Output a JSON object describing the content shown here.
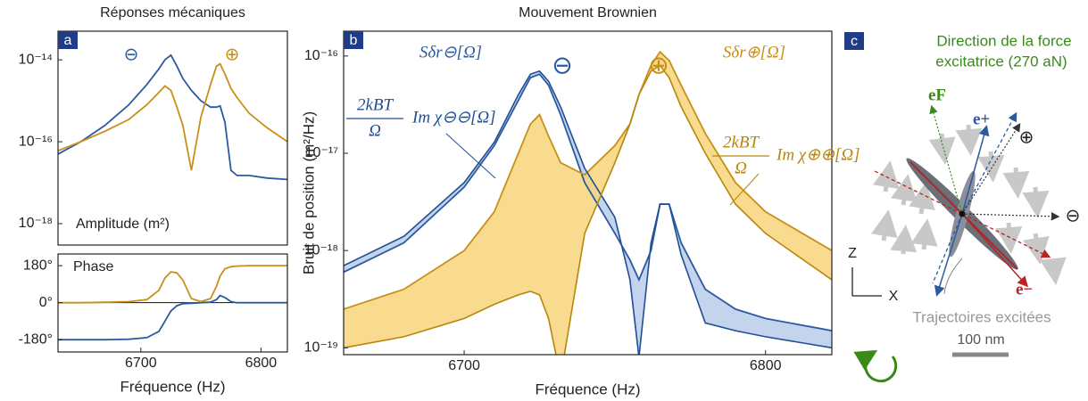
{
  "chart_data": [
    {
      "type": "line",
      "panel": "a",
      "title": "Réponses mécaniques",
      "label": "Amplitude (m²)",
      "log_y": true,
      "x": [
        6631,
        6650,
        6670,
        6690,
        6705,
        6715,
        6720,
        6725,
        6730,
        6735,
        6742,
        6750,
        6758,
        6763,
        6766,
        6770,
        6775,
        6780,
        6790,
        6805,
        6822
      ],
      "xlim": [
        6631,
        6822
      ],
      "ylim": [
        3e-19,
        5e-14
      ],
      "yticks": [
        {
          "value": 1e-14,
          "label": "10⁻¹⁴"
        },
        {
          "value": 1e-16,
          "label": "10⁻¹⁶"
        },
        {
          "value": 1e-18,
          "label": "10⁻¹⁸"
        }
      ],
      "annotations": [
        "⊖",
        "⊕"
      ],
      "series": [
        {
          "color": "#2c5aa0",
          "values": [
            5e-17,
            1e-16,
            2.5e-16,
            8e-16,
            2.5e-15,
            6e-15,
            1e-14,
            1.3e-14,
            7e-15,
            3.5e-15,
            1.8e-15,
            1e-15,
            7e-16,
            7e-16,
            7.5e-16,
            3e-16,
            2e-17,
            1.5e-17,
            1.5e-17,
            1.3e-17,
            1.2e-17
          ]
        },
        {
          "color": "#c8901a",
          "values": [
            6e-17,
            1e-16,
            1.8e-16,
            3.5e-16,
            8e-16,
            1.6e-15,
            2.3e-15,
            1.8e-15,
            7e-16,
            2.5e-16,
            2e-17,
            4e-16,
            2.5e-15,
            7e-15,
            8e-15,
            4.5e-15,
            2e-15,
            1.2e-15,
            5e-16,
            2.2e-16,
            1e-16
          ]
        }
      ]
    },
    {
      "type": "line",
      "label": "Phase",
      "xlabel": "Fréquence (Hz)",
      "zero_line": true,
      "x": [
        6631,
        6650,
        6670,
        6690,
        6705,
        6715,
        6720,
        6725,
        6730,
        6735,
        6742,
        6750,
        6758,
        6763,
        6766,
        6770,
        6775,
        6780,
        6790,
        6805,
        6822
      ],
      "xlim": [
        6631,
        6822
      ],
      "xticks": [
        6700,
        6800
      ],
      "ylim": [
        -240,
        237
      ],
      "yticks": [
        {
          "value": 180,
          "label": "180°"
        },
        {
          "value": 0,
          "label": "0°"
        },
        {
          "value": -180,
          "label": "-180°"
        }
      ],
      "series": [
        {
          "color": "#2c5aa0",
          "values": [
            -180,
            -180,
            -180,
            -178,
            -170,
            -140,
            -90,
            -40,
            -15,
            -5,
            -3,
            0,
            3,
            15,
            35,
            25,
            5,
            0,
            0,
            0,
            0
          ]
        },
        {
          "color": "#c8901a",
          "values": [
            0,
            0,
            2,
            5,
            15,
            60,
            120,
            150,
            145,
            110,
            20,
            5,
            20,
            80,
            130,
            165,
            175,
            178,
            180,
            180,
            180
          ]
        }
      ]
    },
    {
      "type": "line",
      "panel": "b",
      "title": "Mouvement Brownien",
      "xlabel": "Fréquence (Hz)",
      "ylabel": "Bruit de position (m²/Hz)",
      "log_y": true,
      "x": [
        6660,
        6680,
        6700,
        6710,
        6718,
        6722,
        6725,
        6728,
        6732,
        6740,
        6750,
        6755,
        6758,
        6762,
        6765,
        6768,
        6772,
        6780,
        6790,
        6800,
        6822
      ],
      "xlim": [
        6660,
        6822
      ],
      "xticks": [
        6700,
        6800
      ],
      "ylim": [
        8.5e-20,
        1.8e-16
      ],
      "yticks": [
        {
          "value": 1e-16,
          "label": "10⁻¹⁶"
        },
        {
          "value": 1e-17,
          "label": "10⁻¹⁷"
        },
        {
          "value": 1e-18,
          "label": "10⁻¹⁸"
        },
        {
          "value": 1e-19,
          "label": "10⁻¹⁹"
        }
      ],
      "annotations": [
        "⊖",
        "⊕"
      ],
      "fraction": {
        "numerator": "2kBT",
        "denominator": "Ω"
      },
      "series": [
        {
          "name": "Sδr⊖[Ω]",
          "color": "#2c5aa0",
          "values": [
            6e-19,
            1.2e-18,
            4.5e-18,
            1.2e-17,
            3.5e-17,
            6e-17,
            6.5e-17,
            5e-17,
            2.5e-17,
            5e-18,
            1.5e-18,
            8e-19,
            5e-19,
            1e-18,
            3e-18,
            3e-18,
            1.2e-18,
            4e-19,
            2.5e-19,
            2e-19,
            1.5e-19
          ]
        },
        {
          "name": "Sδr⊕[Ω]",
          "color": "#c8901a",
          "values": [
            2.5e-19,
            4e-19,
            1e-18,
            2.5e-18,
            1e-17,
            2e-17,
            2.5e-17,
            1.5e-17,
            8e-18,
            6e-18,
            1.2e-17,
            2e-17,
            4e-17,
            8e-17,
            1.1e-16,
            9e-17,
            5e-17,
            1.6e-17,
            5e-18,
            2.5e-18,
            1e-18
          ]
        },
        {
          "name": "Im χ⊖⊖[Ω]",
          "color": "#1f4e96",
          "values": [
            7e-19,
            1.4e-18,
            5e-18,
            1.3e-17,
            4e-17,
            6.5e-17,
            7e-17,
            5.5e-17,
            3e-17,
            7e-18,
            2.2e-18,
            5e-19,
            8e-20,
            1.2e-18,
            3e-18,
            3e-18,
            9e-19,
            1.8e-19,
            1.5e-19,
            1.3e-19,
            1e-19
          ]
        },
        {
          "name": "Im χ⊕⊕[Ω]",
          "color": "#b8860b",
          "values": [
            1e-19,
            1.3e-19,
            2e-19,
            2.8e-19,
            3.5e-19,
            3.8e-19,
            3.5e-19,
            2e-19,
            5e-20,
            1.5e-18,
            8e-18,
            2e-17,
            4e-17,
            7e-17,
            8e-17,
            6e-17,
            3e-17,
            1e-17,
            3e-18,
            1.5e-18,
            5e-19
          ]
        }
      ]
    }
  ],
  "panel_c": {
    "label": "c",
    "force_title": [
      "Direction de la force",
      "excitatrice (270 aN)"
    ],
    "e_f": "eF",
    "e_plus": "e+",
    "e_minus": "e−",
    "plus": "⊕",
    "minus": "⊖",
    "z": "Z",
    "x": "X",
    "trajectories": "Trajectoires excitées",
    "scale": "100 nm"
  }
}
